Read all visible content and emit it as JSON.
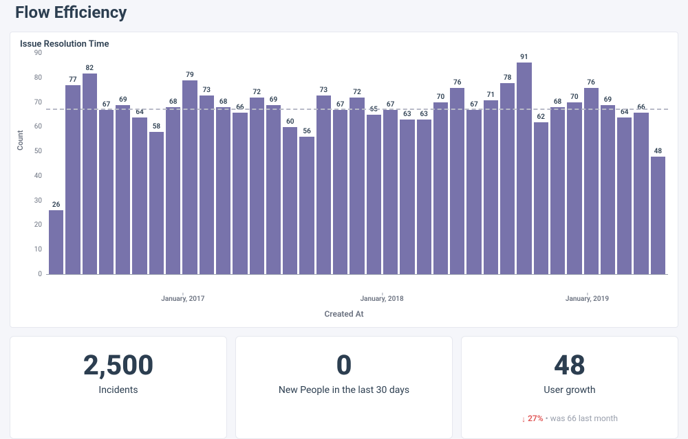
{
  "page": {
    "title": "Flow Efficiency"
  },
  "chart": {
    "type": "bar",
    "title": "Issue Resolution Time",
    "y_label": "Count",
    "x_label": "Created At",
    "y_lim": [
      0,
      90
    ],
    "y_tick_step": 10,
    "avg_line": 67,
    "bar_color": "#7873ab",
    "grid_line_color": "#b8bac7",
    "background_color": "#ffffff",
    "label_fontsize": 10,
    "values": [
      26,
      77,
      82,
      67,
      69,
      64,
      58,
      68,
      79,
      73,
      68,
      66,
      72,
      69,
      60,
      56,
      73,
      67,
      72,
      65,
      67,
      63,
      63,
      70,
      76,
      67,
      71,
      78,
      91,
      62,
      68,
      70,
      76,
      69,
      64,
      66,
      48
    ],
    "x_ticks": [
      {
        "label": "January, 2017",
        "position_pct": 22
      },
      {
        "label": "January, 2018",
        "position_pct": 54
      },
      {
        "label": "January, 2019",
        "position_pct": 87
      }
    ]
  },
  "metrics": {
    "incidents": {
      "value": "2,500",
      "label": "Incidents"
    },
    "new_people": {
      "value": "0",
      "label": "New People in the last 30 days"
    },
    "growth": {
      "value": "48",
      "label": "User growth",
      "delta_direction": "down",
      "delta_pct": "27%",
      "delta_suffix_bullet": "•",
      "delta_was_text": "was 66  last month"
    }
  }
}
